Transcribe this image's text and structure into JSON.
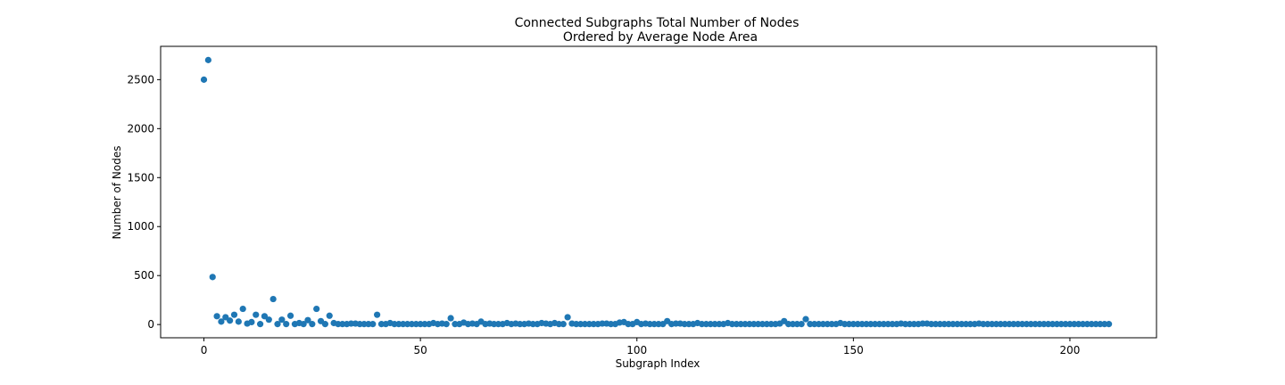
{
  "chart_data": {
    "type": "scatter",
    "title": "Connected Subgraphs Total Number of Nodes",
    "subtitle": "Ordered by Average Node Area",
    "xlabel": "Subgraph Index",
    "ylabel": "Number of Nodes",
    "xlim": [
      -10,
      220
    ],
    "ylim": [
      -135,
      2840
    ],
    "xticks": [
      0,
      50,
      100,
      150,
      200
    ],
    "yticks": [
      0,
      500,
      1000,
      1500,
      2000,
      2500
    ],
    "marker_color": "#1f77b4",
    "grid": false,
    "x_start": 0,
    "values": [
      2500,
      2700,
      485,
      85,
      30,
      75,
      40,
      100,
      30,
      160,
      10,
      25,
      100,
      5,
      85,
      50,
      260,
      5,
      50,
      5,
      90,
      5,
      15,
      5,
      45,
      5,
      160,
      35,
      5,
      90,
      15,
      5,
      5,
      5,
      10,
      10,
      5,
      5,
      5,
      5,
      100,
      5,
      5,
      15,
      5,
      5,
      5,
      5,
      5,
      5,
      5,
      5,
      5,
      15,
      5,
      10,
      5,
      65,
      5,
      5,
      20,
      5,
      10,
      5,
      30,
      5,
      10,
      5,
      5,
      5,
      15,
      5,
      10,
      5,
      5,
      10,
      5,
      5,
      15,
      10,
      5,
      15,
      5,
      5,
      75,
      10,
      5,
      5,
      5,
      5,
      5,
      5,
      10,
      10,
      5,
      5,
      20,
      25,
      5,
      5,
      25,
      5,
      10,
      5,
      5,
      5,
      5,
      35,
      5,
      10,
      10,
      5,
      5,
      5,
      15,
      5,
      5,
      5,
      5,
      5,
      5,
      15,
      5,
      5,
      5,
      5,
      5,
      5,
      5,
      5,
      5,
      5,
      5,
      10,
      35,
      5,
      5,
      5,
      5,
      55,
      5,
      5,
      5,
      5,
      5,
      5,
      5,
      15,
      5,
      5,
      5,
      5,
      5,
      5,
      5,
      5,
      5,
      5,
      5,
      5,
      5,
      10,
      5,
      5,
      5,
      5,
      10,
      10,
      5,
      5,
      5,
      5,
      5,
      5,
      5,
      5,
      5,
      5,
      5,
      10,
      5,
      5,
      5,
      5,
      5,
      5,
      5,
      5,
      5,
      5,
      5,
      5,
      5,
      5,
      5,
      5,
      5,
      5,
      5,
      5,
      5,
      5,
      5,
      5,
      5,
      5,
      5,
      5,
      5,
      5
    ]
  }
}
